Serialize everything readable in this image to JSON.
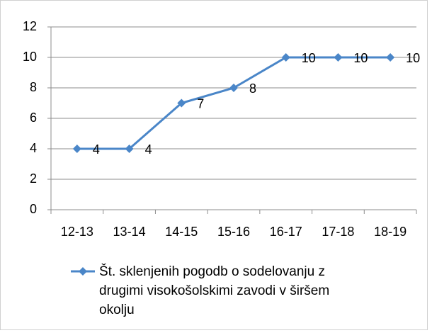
{
  "chart_data": {
    "type": "line",
    "categories": [
      "12-13",
      "13-14",
      "14-15",
      "15-16",
      "16-17",
      "17-18",
      "18-19"
    ],
    "series": [
      {
        "name": "Št. sklenjenih pogodb o sodelovanju z drugimi visokošolskimi zavodi v širšem okolju",
        "color": "#4a86c8",
        "values": [
          4,
          4,
          7,
          8,
          10,
          10,
          10
        ]
      }
    ],
    "ylim": [
      0,
      12
    ],
    "yticks": [
      0,
      2,
      4,
      6,
      8,
      10,
      12
    ],
    "grid": true,
    "legend": "bottom"
  }
}
